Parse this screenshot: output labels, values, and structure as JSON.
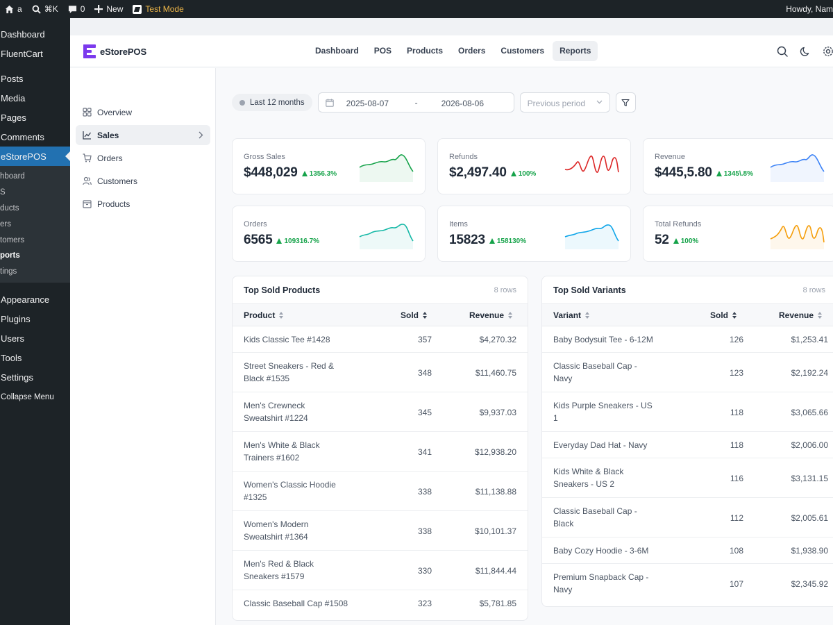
{
  "adminbar": {
    "site_name": "a",
    "shortcut": "⌘K",
    "comments_count": "0",
    "new_label": "New",
    "test_mode_label": "Test Mode",
    "howdy": "Howdy, Nam"
  },
  "wp_menu": {
    "dashboard": "Dashboard",
    "fluentcart": "FluentCart",
    "posts": "Posts",
    "media": "Media",
    "pages": "Pages",
    "comments": "Comments",
    "estorepos": "eStorePOS",
    "sub": [
      "hboard",
      "S",
      "ducts",
      "ers",
      "tomers",
      "ports",
      "tings"
    ],
    "appearance": "Appearance",
    "plugins": "Plugins",
    "users": "Users",
    "tools": "Tools",
    "settings": "Settings",
    "collapse": "Collapse Menu"
  },
  "app": {
    "brand": "eStorePOS",
    "brand_color": "#7c3aed",
    "nav": [
      "Dashboard",
      "POS",
      "Products",
      "Orders",
      "Customers",
      "Reports"
    ],
    "active_nav": "Reports"
  },
  "sidebar": {
    "items": [
      "Overview",
      "Sales",
      "Orders",
      "Customers",
      "Products"
    ],
    "active": "Sales"
  },
  "filters": {
    "preset": "Last 12 months",
    "date_from": "2025-08-07",
    "date_separator": "-",
    "date_to": "2026-08-06",
    "compare_placeholder": "Previous period"
  },
  "stats": [
    {
      "label": "Gross Sales",
      "value": "$448,029",
      "change": "1356.3%",
      "color": "#16a34a"
    },
    {
      "label": "Refunds",
      "value": "$2,497.40",
      "change": "100%",
      "color": "#dc2626"
    },
    {
      "label": "Revenue",
      "value": "$445,5.80",
      "change": "1345\\.8%",
      "color": "#3b82f6"
    },
    {
      "label": "Orders",
      "value": "6565",
      "change": "109316.7%",
      "color": "#14b8a6"
    },
    {
      "label": "Items",
      "value": "15823",
      "change": "158130%",
      "color": "#0ea5e9"
    },
    {
      "label": "Total Refunds",
      "value": "52",
      "change": "100%",
      "color": "#f59e0b"
    }
  ],
  "top_products": {
    "title": "Top Sold Products",
    "rows_label": "8 rows",
    "columns": [
      "Product",
      "Sold",
      "Revenue"
    ],
    "rows": [
      {
        "name": [
          "Kids Classic Tee #1428"
        ],
        "sold": "357",
        "revenue": "$4,270.32"
      },
      {
        "name": [
          "Street Sneakers - Red &",
          "Black #1535"
        ],
        "sold": "348",
        "revenue": "$11,460.75"
      },
      {
        "name": [
          "Men's Crewneck",
          "Sweatshirt #1224"
        ],
        "sold": "345",
        "revenue": "$9,937.03"
      },
      {
        "name": [
          "Men's White & Black",
          "Trainers #1602"
        ],
        "sold": "341",
        "revenue": "$12,938.20"
      },
      {
        "name": [
          "Women's Classic Hoodie",
          "#1325"
        ],
        "sold": "338",
        "revenue": "$11,138.88"
      },
      {
        "name": [
          "Women's Modern",
          "Sweatshirt #1364"
        ],
        "sold": "338",
        "revenue": "$10,101.37"
      },
      {
        "name": [
          "Men's Red & Black",
          "Sneakers #1579"
        ],
        "sold": "330",
        "revenue": "$11,844.44"
      },
      {
        "name": [
          "Classic Baseball Cap #1508"
        ],
        "sold": "323",
        "revenue": "$5,781.85"
      }
    ]
  },
  "top_variants": {
    "title": "Top Sold Variants",
    "rows_label": "8 rows",
    "columns": [
      "Variant",
      "Sold",
      "Revenue"
    ],
    "rows": [
      {
        "name": [
          "Baby Bodysuit Tee - 6-12M"
        ],
        "sold": "126",
        "revenue": "$1,253.41"
      },
      {
        "name": [
          "Classic Baseball Cap -",
          "Navy"
        ],
        "sold": "123",
        "revenue": "$2,192.24"
      },
      {
        "name": [
          "Kids Purple Sneakers - US",
          "1"
        ],
        "sold": "118",
        "revenue": "$3,065.66"
      },
      {
        "name": [
          "Everyday Dad Hat - Navy"
        ],
        "sold": "118",
        "revenue": "$2,006.00"
      },
      {
        "name": [
          "Kids White & Black",
          "Sneakers - US 2"
        ],
        "sold": "116",
        "revenue": "$3,131.15"
      },
      {
        "name": [
          "Classic Baseball Cap -",
          "Black"
        ],
        "sold": "112",
        "revenue": "$2,005.61"
      },
      {
        "name": [
          "Baby Cozy Hoodie - 3-6M"
        ],
        "sold": "108",
        "revenue": "$1,938.90"
      },
      {
        "name": [
          "Premium Snapback Cap -",
          "Navy"
        ],
        "sold": "107",
        "revenue": "$2,345.92"
      }
    ]
  }
}
